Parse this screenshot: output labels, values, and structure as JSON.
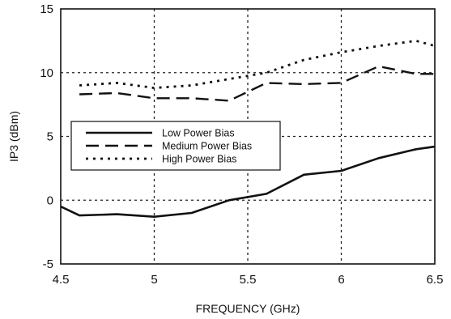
{
  "chart_data": {
    "type": "line",
    "title": "",
    "xlabel": "FREQUENCY (GHz)",
    "ylabel": "IP3 (dBm)",
    "xlim": [
      4.5,
      6.5
    ],
    "ylim": [
      -5,
      15
    ],
    "x_ticks": [
      4.5,
      5,
      5.5,
      6,
      6.5
    ],
    "x_tick_labels": [
      "4.5",
      "5",
      "5.5",
      "6",
      "6.5"
    ],
    "y_ticks": [
      -5,
      0,
      5,
      10,
      15
    ],
    "y_tick_labels": [
      "-5",
      "0",
      "5",
      "10",
      "15"
    ],
    "grid": "dotted",
    "legend": "left-center",
    "series": [
      {
        "name": "Low Power Bias",
        "style": "solid",
        "x": [
          4.5,
          4.6,
          4.8,
          5.0,
          5.2,
          5.4,
          5.6,
          5.8,
          6.0,
          6.2,
          6.4,
          6.5
        ],
        "y": [
          -0.5,
          -1.2,
          -1.1,
          -1.3,
          -1.0,
          0.0,
          0.5,
          2.0,
          2.3,
          3.3,
          4.0,
          4.2
        ]
      },
      {
        "name": "Medium Power Bias",
        "style": "dashed",
        "x": [
          4.6,
          4.8,
          5.0,
          5.2,
          5.4,
          5.6,
          5.8,
          6.0,
          6.2,
          6.4,
          6.5
        ],
        "y": [
          8.3,
          8.4,
          8.0,
          8.0,
          7.8,
          9.2,
          9.1,
          9.2,
          10.5,
          9.9,
          9.9
        ]
      },
      {
        "name": "High Power Bias",
        "style": "dotted",
        "x": [
          4.6,
          4.8,
          5.0,
          5.2,
          5.4,
          5.6,
          5.8,
          6.0,
          6.2,
          6.4,
          6.5
        ],
        "y": [
          9.0,
          9.2,
          8.8,
          9.0,
          9.5,
          10.0,
          11.0,
          11.6,
          12.1,
          12.5,
          12.1
        ]
      }
    ]
  }
}
